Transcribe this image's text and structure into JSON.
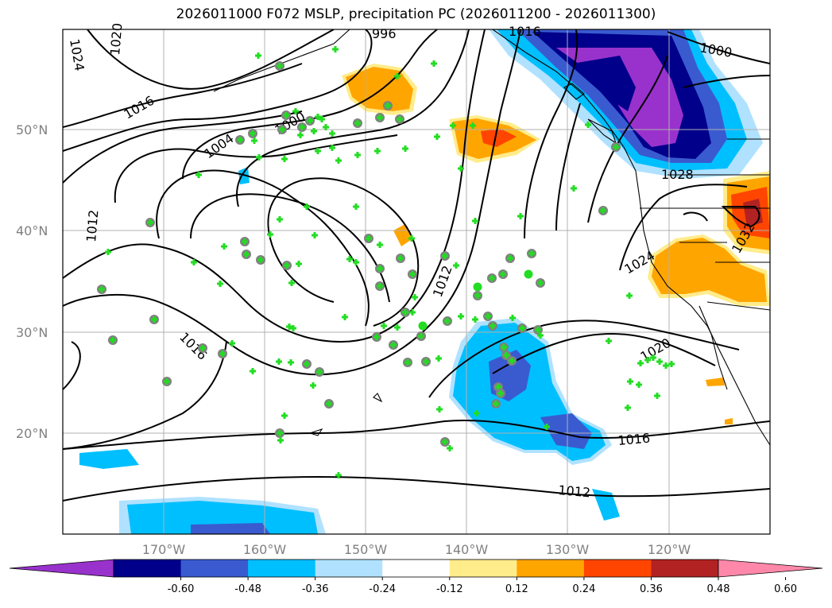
{
  "title": "2026011000 F072 MSLP, precipitation PC (2026011200 - 2026011300)",
  "map": {
    "lon_range": [
      -180,
      -110
    ],
    "lat_range": [
      10,
      60
    ],
    "lat_ticks": [
      {
        "value": 20,
        "label": "20°N"
      },
      {
        "value": 30,
        "label": "30°N"
      },
      {
        "value": 40,
        "label": "40°N"
      },
      {
        "value": 50,
        "label": "50°N"
      }
    ],
    "lon_ticks": [
      {
        "value": -170,
        "label": "170°W"
      },
      {
        "value": -160,
        "label": "160°W"
      },
      {
        "value": -150,
        "label": "150°W"
      },
      {
        "value": -140,
        "label": "140°W"
      },
      {
        "value": -130,
        "label": "130°W"
      },
      {
        "value": -120,
        "label": "120°W"
      }
    ],
    "grid": true,
    "isobar_labels": [
      "1024",
      "1020",
      "1016",
      "1004",
      "1000",
      "996",
      "1012",
      "1016",
      "1012",
      "1016",
      "1012",
      "1020",
      "1024",
      "1028",
      "1000",
      "1016",
      "1032"
    ]
  },
  "colorbar": {
    "colors": [
      "#9932CC",
      "#00008B",
      "#3A5BD0",
      "#00BFFF",
      "#B0E2FF",
      "#FFFFFF",
      "#FFEC8B",
      "#FFA500",
      "#FF4500",
      "#B22222",
      "#FF88AA"
    ],
    "ticks": [
      "-0.60",
      "-0.48",
      "-0.36",
      "-0.24",
      "-0.12",
      "0.12",
      "0.24",
      "0.36",
      "0.48",
      "0.60"
    ]
  },
  "stations": {
    "cross_color": "#22dd22",
    "circle_color": "#808080"
  }
}
